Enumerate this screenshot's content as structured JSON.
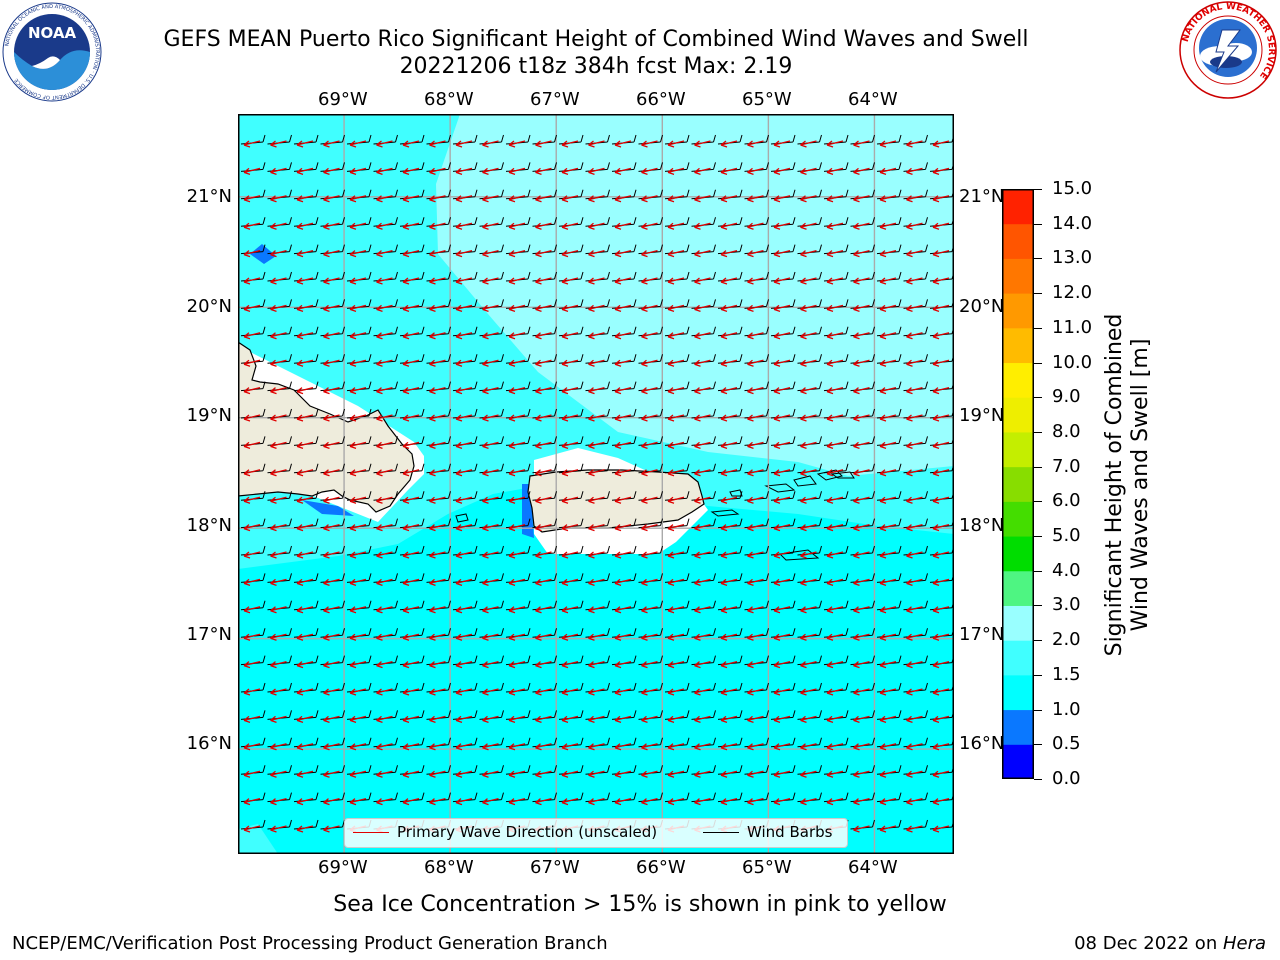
{
  "header": {
    "title_line1": "GEFS MEAN Puerto Rico Significant Height of Combined Wind Waves and Swell",
    "title_line2": "20221206 t18z 384h fcst   Max: 2.19"
  },
  "logos": {
    "noaa_text": "NOAA",
    "noaa_ring_text": "NATIONAL OCEANIC AND ATMOSPHERIC ADMINISTRATION · U.S. DEPARTMENT OF COMMERCE",
    "nws_ring_text": "NATIONAL WEATHER SERVICE"
  },
  "map": {
    "lon_labels": [
      "69°W",
      "68°W",
      "67°W",
      "66°W",
      "65°W",
      "64°W"
    ],
    "lat_labels": [
      "21°N",
      "20°N",
      "19°N",
      "18°N",
      "17°N",
      "16°N"
    ],
    "lon_range": [
      -70.0,
      -63.25
    ],
    "lat_range": [
      15.05,
      21.75
    ],
    "colors": {
      "land": "#eeecdc",
      "sea_1_1_5": "#00ffff",
      "sea_1_5_2": "#40ffff",
      "sea_2_3": "#99ffff",
      "sea_0_5_1": "#0a78ff"
    }
  },
  "colorbar": {
    "label_line1": "Significant Height of Combined",
    "label_line2": "Wind Waves and Swell [m]",
    "ticks": [
      "15.0",
      "14.0",
      "13.0",
      "12.0",
      "11.0",
      "10.0",
      "9.0",
      "8.0",
      "7.0",
      "6.0",
      "5.0",
      "4.0",
      "3.0",
      "2.0",
      "1.5",
      "1.0",
      "0.5",
      "0.0"
    ],
    "bin_colors": [
      "#0000ff",
      "#0a78ff",
      "#00ffff",
      "#40ffff",
      "#99ffff",
      "#4ef582",
      "#00dd00",
      "#44dd00",
      "#88dd00",
      "#c4ee00",
      "#eeee00",
      "#ffee00",
      "#ffbb00",
      "#ff9900",
      "#ff7700",
      "#ff5500",
      "#ff2200"
    ]
  },
  "legend": {
    "primary_wave": "Primary Wave Direction (unscaled)",
    "wind_barbs": "Wind Barbs",
    "primary_wave_color": "#e00000",
    "wind_barbs_color": "#000000"
  },
  "sea_ice_note": "Sea Ice Concentration > 15% is shown in pink to yellow",
  "footer": {
    "left": "NCEP/EMC/Verification Post Processing Product Generation Branch",
    "right_prefix": "08 Dec 2022 on ",
    "right_machine": "Hera"
  }
}
